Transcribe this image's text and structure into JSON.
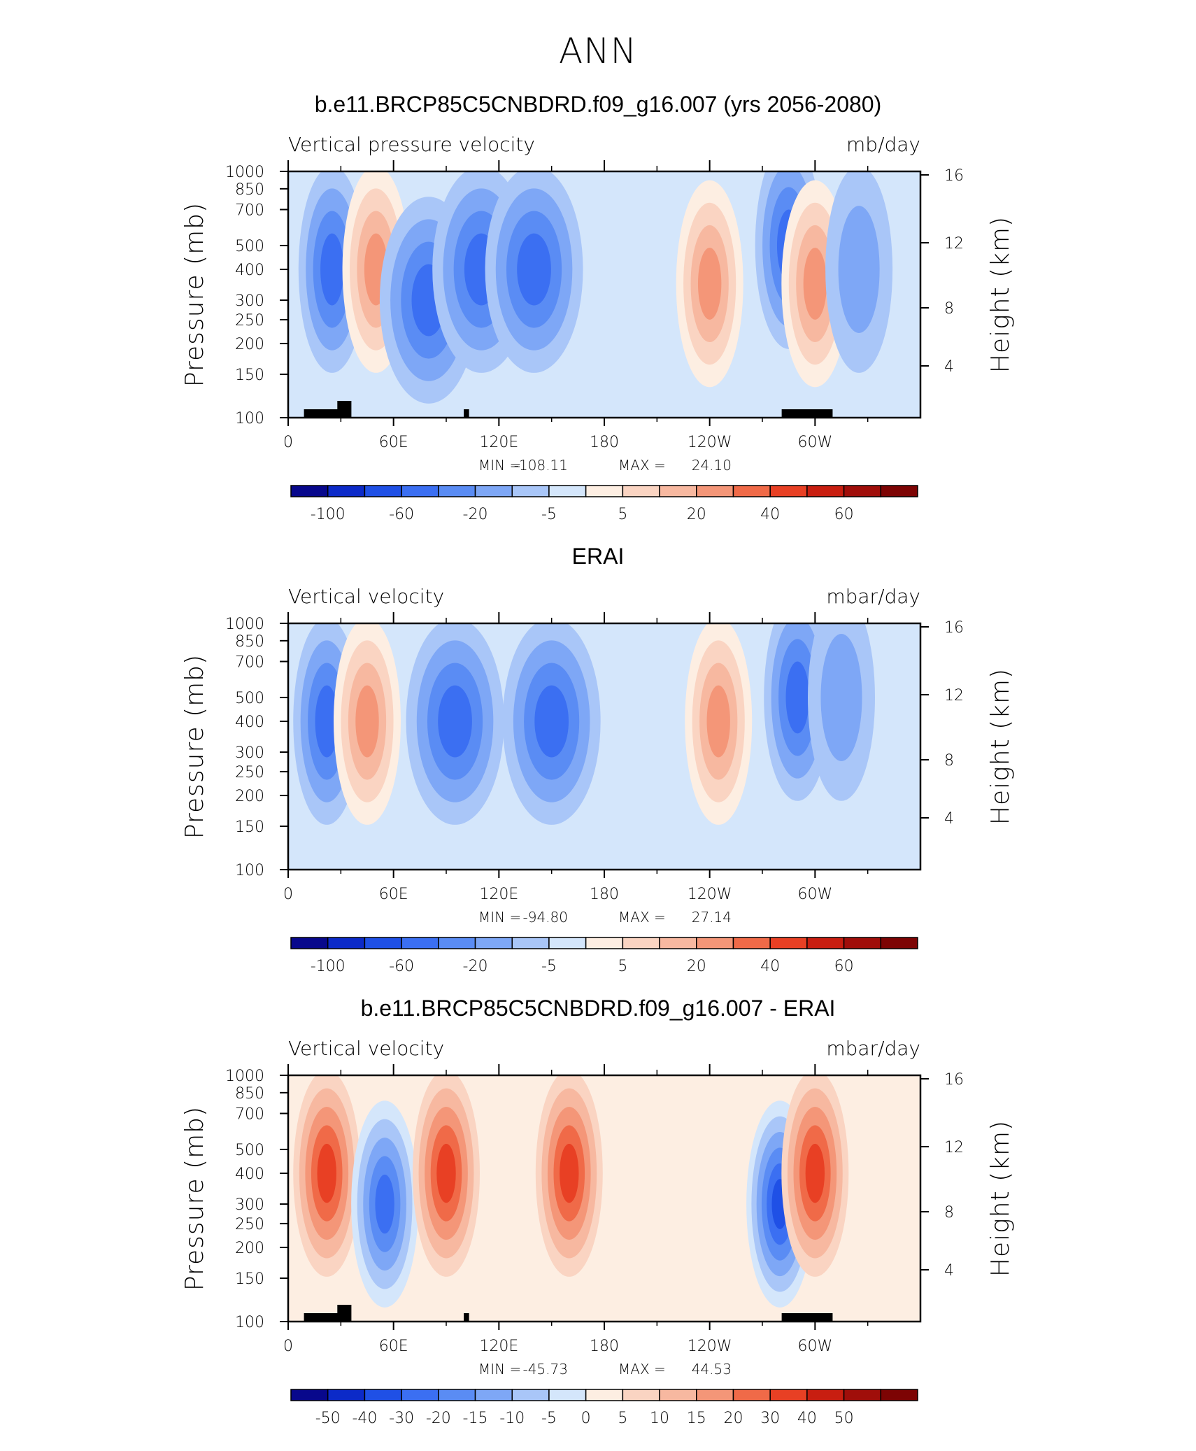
{
  "figure_title": "ANN",
  "colors": {
    "scale": [
      "#08088c",
      "#0c2ac8",
      "#1f50e6",
      "#3b6ff2",
      "#5a8cf4",
      "#7ea7f6",
      "#a9c6f8",
      "#d4e6fb",
      "#fdeee2",
      "#fad4c2",
      "#f7b8a0",
      "#f49678",
      "#f06a48",
      "#e84024",
      "#c81e10",
      "#a00e0a",
      "#7d0404"
    ],
    "land": "#000000"
  },
  "chart_data": [
    {
      "type": "contour",
      "title": "b.e11.BRCP85C5CNBDRD.f09_g16.007 (yrs 2056-2080)",
      "subtitle_left": "Vertical pressure velocity",
      "subtitle_right": "mb/day",
      "ylabel": "Pressure (mb)",
      "y2label": "Height (km)",
      "x_ticks": [
        "0",
        "60E",
        "120E",
        "180",
        "120W",
        "60W"
      ],
      "y_ticks": [
        "100",
        "150",
        "200",
        "250",
        "300",
        "400",
        "500",
        "700",
        "850",
        "1000"
      ],
      "y2_ticks": [
        "16",
        "12",
        "8",
        "4"
      ],
      "ylim": [
        1000,
        100
      ],
      "stats": {
        "min_label": "MIN =",
        "min": "-108.11",
        "max_label": "MAX =",
        "max": "24.10"
      },
      "colorbar_labels": [
        "-100",
        "-60",
        "-20",
        "-5",
        "5",
        "20",
        "40",
        "60"
      ],
      "features": [
        {
          "lon": 25,
          "p": 400,
          "value": -60
        },
        {
          "lon": 50,
          "p": 400,
          "value": 20
        },
        {
          "lon": 80,
          "p": 300,
          "value": -60
        },
        {
          "lon": 110,
          "p": 400,
          "value": -60
        },
        {
          "lon": 140,
          "p": 400,
          "value": -60
        },
        {
          "lon": 240,
          "p": 350,
          "value": 20
        },
        {
          "lon": 285,
          "p": 500,
          "value": -60
        },
        {
          "lon": 300,
          "p": 350,
          "value": 20
        },
        {
          "lon": 325,
          "p": 400,
          "value": -20
        }
      ]
    },
    {
      "type": "contour",
      "title": "ERAI",
      "subtitle_left": "Vertical velocity",
      "subtitle_right": "mbar/day",
      "ylabel": "Pressure (mb)",
      "y2label": "Height (km)",
      "x_ticks": [
        "0",
        "60E",
        "120E",
        "180",
        "120W",
        "60W"
      ],
      "y_ticks": [
        "100",
        "150",
        "200",
        "250",
        "300",
        "400",
        "500",
        "700",
        "850",
        "1000"
      ],
      "y2_ticks": [
        "16",
        "12",
        "8",
        "4"
      ],
      "ylim": [
        1000,
        100
      ],
      "stats": {
        "min_label": "MIN =",
        "min": "-94.80",
        "max_label": "MAX =",
        "max": "27.14"
      },
      "colorbar_labels": [
        "-100",
        "-60",
        "-20",
        "-5",
        "5",
        "20",
        "40",
        "60"
      ],
      "features": [
        {
          "lon": 22,
          "p": 400,
          "value": -60
        },
        {
          "lon": 45,
          "p": 400,
          "value": 20
        },
        {
          "lon": 95,
          "p": 400,
          "value": -60
        },
        {
          "lon": 150,
          "p": 400,
          "value": -60
        },
        {
          "lon": 245,
          "p": 400,
          "value": 20
        },
        {
          "lon": 290,
          "p": 500,
          "value": -60
        },
        {
          "lon": 315,
          "p": 500,
          "value": -20
        }
      ]
    },
    {
      "type": "contour",
      "title": "b.e11.BRCP85C5CNBDRD.f09_g16.007 - ERAI",
      "subtitle_left": "Vertical velocity",
      "subtitle_right": "mbar/day",
      "ylabel": "Pressure (mb)",
      "y2label": "Height (km)",
      "x_ticks": [
        "0",
        "60E",
        "120E",
        "180",
        "120W",
        "60W"
      ],
      "y_ticks": [
        "100",
        "150",
        "200",
        "250",
        "300",
        "400",
        "500",
        "700",
        "850",
        "1000"
      ],
      "y2_ticks": [
        "16",
        "12",
        "8",
        "4"
      ],
      "ylim": [
        1000,
        100
      ],
      "stats": {
        "min_label": "MIN =",
        "min": "-45.73",
        "max_label": "MAX =",
        "max": "44.53"
      },
      "colorbar_labels": [
        "-50",
        "-40",
        "-30",
        "-20",
        "-15",
        "-10",
        "-5",
        "0",
        "5",
        "10",
        "15",
        "20",
        "30",
        "40",
        "50"
      ],
      "features": [
        {
          "lon": 22,
          "p": 400,
          "value": 30
        },
        {
          "lon": 55,
          "p": 300,
          "value": -30
        },
        {
          "lon": 90,
          "p": 400,
          "value": 30
        },
        {
          "lon": 160,
          "p": 400,
          "value": 30
        },
        {
          "lon": 280,
          "p": 300,
          "value": -40
        },
        {
          "lon": 300,
          "p": 400,
          "value": 30
        }
      ]
    }
  ]
}
